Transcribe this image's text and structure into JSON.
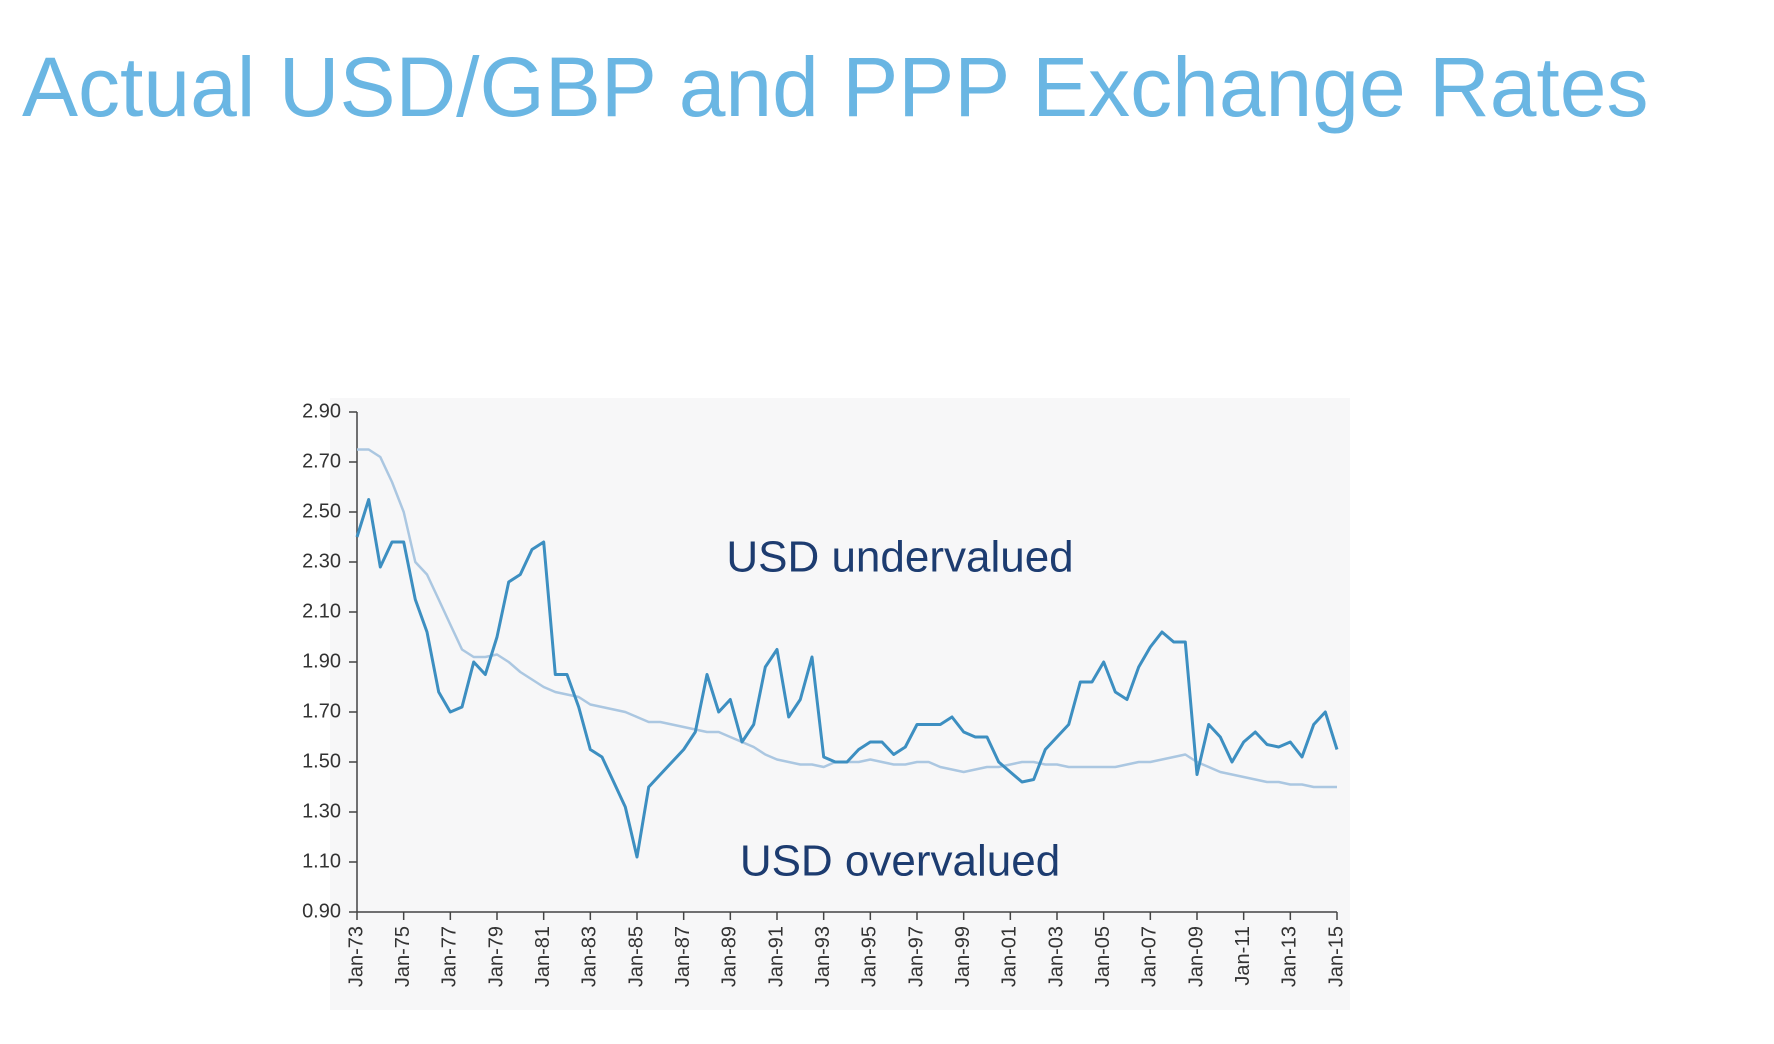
{
  "chart_data": {
    "type": "line",
    "title": "Actual USD/GBP and PPP Exchange Rates",
    "annotations": [
      "USD undervalued",
      "USD overvalued"
    ],
    "categories": [
      "Jan-73",
      null,
      null,
      null,
      "Jan-75",
      null,
      null,
      null,
      "Jan-77",
      null,
      null,
      null,
      "Jan-79",
      null,
      null,
      null,
      "Jan-81",
      null,
      null,
      null,
      "Jan-83",
      null,
      null,
      null,
      "Jan-85",
      null,
      null,
      null,
      "Jan-87",
      null,
      null,
      null,
      "Jan-89",
      null,
      null,
      null,
      "Jan-91",
      null,
      null,
      null,
      "Jan-93",
      null,
      null,
      null,
      "Jan-95",
      null,
      null,
      null,
      "Jan-97",
      null,
      null,
      null,
      "Jan-99",
      null,
      null,
      null,
      "Jan-01",
      null,
      null,
      null,
      "Jan-03",
      null,
      null,
      null,
      "Jan-05",
      null,
      null,
      null,
      "Jan-07",
      null,
      null,
      null,
      "Jan-09",
      null,
      null,
      null,
      "Jan-11",
      null,
      null,
      null,
      "Jan-13",
      null,
      null,
      null,
      "Jan-15"
    ],
    "series": [
      {
        "color": "#3d8fc1",
        "values": [
          2.4,
          2.55,
          2.28,
          2.38,
          2.38,
          2.15,
          2.02,
          1.78,
          1.7,
          1.72,
          1.9,
          1.85,
          2.0,
          2.22,
          2.25,
          2.35,
          2.38,
          1.85,
          1.85,
          1.72,
          1.55,
          1.52,
          1.42,
          1.32,
          1.12,
          1.4,
          1.45,
          1.5,
          1.55,
          1.62,
          1.85,
          1.7,
          1.75,
          1.58,
          1.65,
          1.88,
          1.95,
          1.68,
          1.75,
          1.92,
          1.52,
          1.5,
          1.5,
          1.55,
          1.58,
          1.58,
          1.53,
          1.56,
          1.65,
          1.65,
          1.65,
          1.68,
          1.62,
          1.6,
          1.6,
          1.5,
          1.46,
          1.42,
          1.43,
          1.55,
          1.6,
          1.65,
          1.82,
          1.82,
          1.9,
          1.78,
          1.75,
          1.88,
          1.96,
          2.02,
          1.98,
          1.98,
          1.45,
          1.65,
          1.6,
          1.5,
          1.58,
          1.62,
          1.57,
          1.56,
          1.58,
          1.52,
          1.65,
          1.7,
          1.55
        ]
      },
      {
        "color": "#abc7e1",
        "values": [
          2.75,
          2.75,
          2.72,
          2.62,
          2.5,
          2.3,
          2.25,
          2.15,
          2.05,
          1.95,
          1.92,
          1.92,
          1.93,
          1.9,
          1.86,
          1.83,
          1.8,
          1.78,
          1.77,
          1.76,
          1.73,
          1.72,
          1.71,
          1.7,
          1.68,
          1.66,
          1.66,
          1.65,
          1.64,
          1.63,
          1.62,
          1.62,
          1.6,
          1.58,
          1.56,
          1.53,
          1.51,
          1.5,
          1.49,
          1.49,
          1.48,
          1.5,
          1.5,
          1.5,
          1.51,
          1.5,
          1.49,
          1.49,
          1.5,
          1.5,
          1.48,
          1.47,
          1.46,
          1.47,
          1.48,
          1.48,
          1.49,
          1.5,
          1.5,
          1.49,
          1.49,
          1.48,
          1.48,
          1.48,
          1.48,
          1.48,
          1.49,
          1.5,
          1.5,
          1.51,
          1.52,
          1.53,
          1.5,
          1.48,
          1.46,
          1.45,
          1.44,
          1.43,
          1.42,
          1.42,
          1.41,
          1.41,
          1.4,
          1.4,
          1.4
        ]
      }
    ],
    "ylim": [
      0.9,
      2.9
    ],
    "yticks": [
      {
        "value": 0.9,
        "label": "0.90"
      },
      {
        "value": 1.1,
        "label": "1.10"
      },
      {
        "value": 1.3,
        "label": "1.30"
      },
      {
        "value": 1.5,
        "label": "1.50"
      },
      {
        "value": 1.7,
        "label": "1.70"
      },
      {
        "value": 1.9,
        "label": "1.90"
      },
      {
        "value": 2.1,
        "label": "2.10"
      },
      {
        "value": 2.3,
        "label": "2.30"
      },
      {
        "value": 2.5,
        "label": "2.50"
      },
      {
        "value": 2.7,
        "label": "2.70"
      },
      {
        "value": 2.9,
        "label": "2.90"
      }
    ],
    "grid": false
  }
}
